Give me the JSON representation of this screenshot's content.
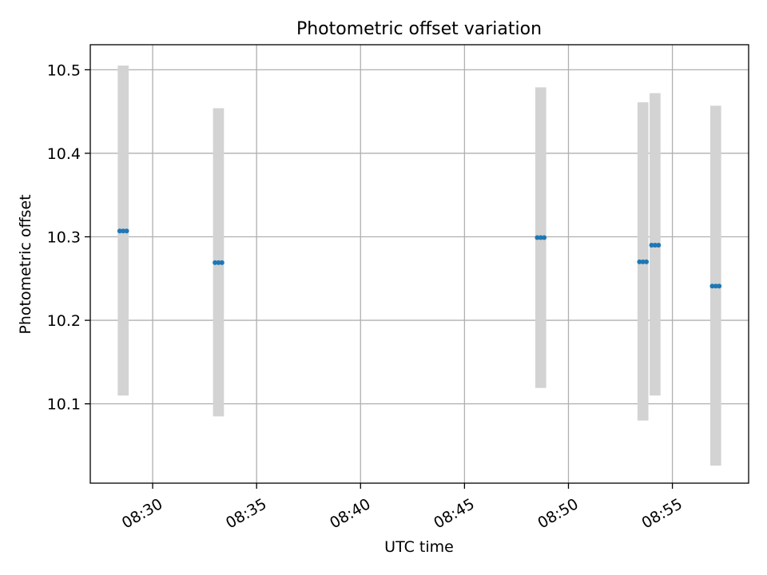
{
  "chart_data": {
    "type": "scatter",
    "title": "Photometric offset variation",
    "xlabel": "UTC time",
    "ylabel": "Photometric offset",
    "x_axis": {
      "kind": "time",
      "range": [
        "08:27:00",
        "08:58:40"
      ],
      "ticks": [
        "08:30",
        "08:35",
        "08:40",
        "08:45",
        "08:50",
        "08:55"
      ]
    },
    "y_axis": {
      "range": [
        10.005,
        10.53
      ],
      "ticks": [
        10.1,
        10.2,
        10.3,
        10.4,
        10.5
      ],
      "tick_labels": [
        "10.1",
        "10.2",
        "10.3",
        "10.4",
        "10.5"
      ]
    },
    "grid": true,
    "marker_color": "#1f77b4",
    "errorbar_color": "#d3d3d3",
    "series": [
      {
        "points": [
          {
            "x": "08:28:25",
            "y": 10.307,
            "ylow": 10.11,
            "yhigh": 10.505
          },
          {
            "x": "08:28:35",
            "y": 10.307,
            "ylow": 10.11,
            "yhigh": 10.505
          },
          {
            "x": "08:28:45",
            "y": 10.307,
            "ylow": 10.11,
            "yhigh": 10.505
          },
          {
            "x": "08:33:00",
            "y": 10.269,
            "ylow": 10.085,
            "yhigh": 10.454
          },
          {
            "x": "08:33:10",
            "y": 10.269,
            "ylow": 10.085,
            "yhigh": 10.454
          },
          {
            "x": "08:33:20",
            "y": 10.269,
            "ylow": 10.085,
            "yhigh": 10.454
          },
          {
            "x": "08:48:30",
            "y": 10.299,
            "ylow": 10.119,
            "yhigh": 10.479
          },
          {
            "x": "08:48:40",
            "y": 10.299,
            "ylow": 10.119,
            "yhigh": 10.479
          },
          {
            "x": "08:48:50",
            "y": 10.299,
            "ylow": 10.119,
            "yhigh": 10.479
          },
          {
            "x": "08:53:25",
            "y": 10.27,
            "ylow": 10.08,
            "yhigh": 10.461
          },
          {
            "x": "08:53:35",
            "y": 10.27,
            "ylow": 10.08,
            "yhigh": 10.461
          },
          {
            "x": "08:53:45",
            "y": 10.27,
            "ylow": 10.08,
            "yhigh": 10.461
          },
          {
            "x": "08:54:00",
            "y": 10.29,
            "ylow": 10.11,
            "yhigh": 10.472
          },
          {
            "x": "08:54:10",
            "y": 10.29,
            "ylow": 10.11,
            "yhigh": 10.472
          },
          {
            "x": "08:54:20",
            "y": 10.29,
            "ylow": 10.11,
            "yhigh": 10.472
          },
          {
            "x": "08:56:55",
            "y": 10.241,
            "ylow": 10.026,
            "yhigh": 10.457
          },
          {
            "x": "08:57:05",
            "y": 10.241,
            "ylow": 10.026,
            "yhigh": 10.457
          },
          {
            "x": "08:57:15",
            "y": 10.241,
            "ylow": 10.026,
            "yhigh": 10.457
          }
        ]
      }
    ]
  }
}
